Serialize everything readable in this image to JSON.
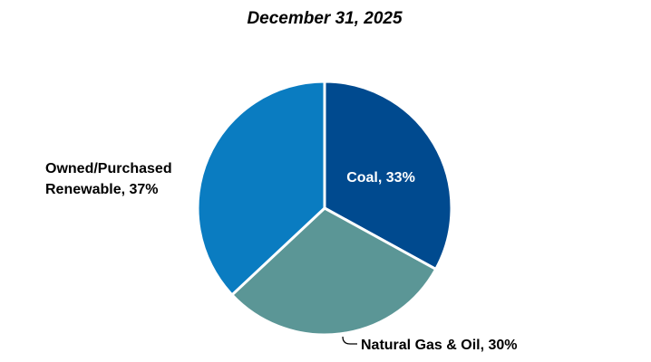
{
  "chart_data": {
    "type": "pie",
    "title": "December 31, 2025",
    "slices": [
      {
        "label_lines": [
          "Coal, 33%"
        ],
        "value": 33,
        "color": "#004a8f"
      },
      {
        "label_lines": [
          "Natural Gas & Oil, 30%"
        ],
        "value": 30,
        "color": "#5b9696"
      },
      {
        "label_lines": [
          "Owned/Purchased",
          "Renewable, 37%"
        ],
        "value": 37,
        "color": "#0a7cc1"
      }
    ],
    "legend": "none",
    "start": "top, clockwise"
  }
}
